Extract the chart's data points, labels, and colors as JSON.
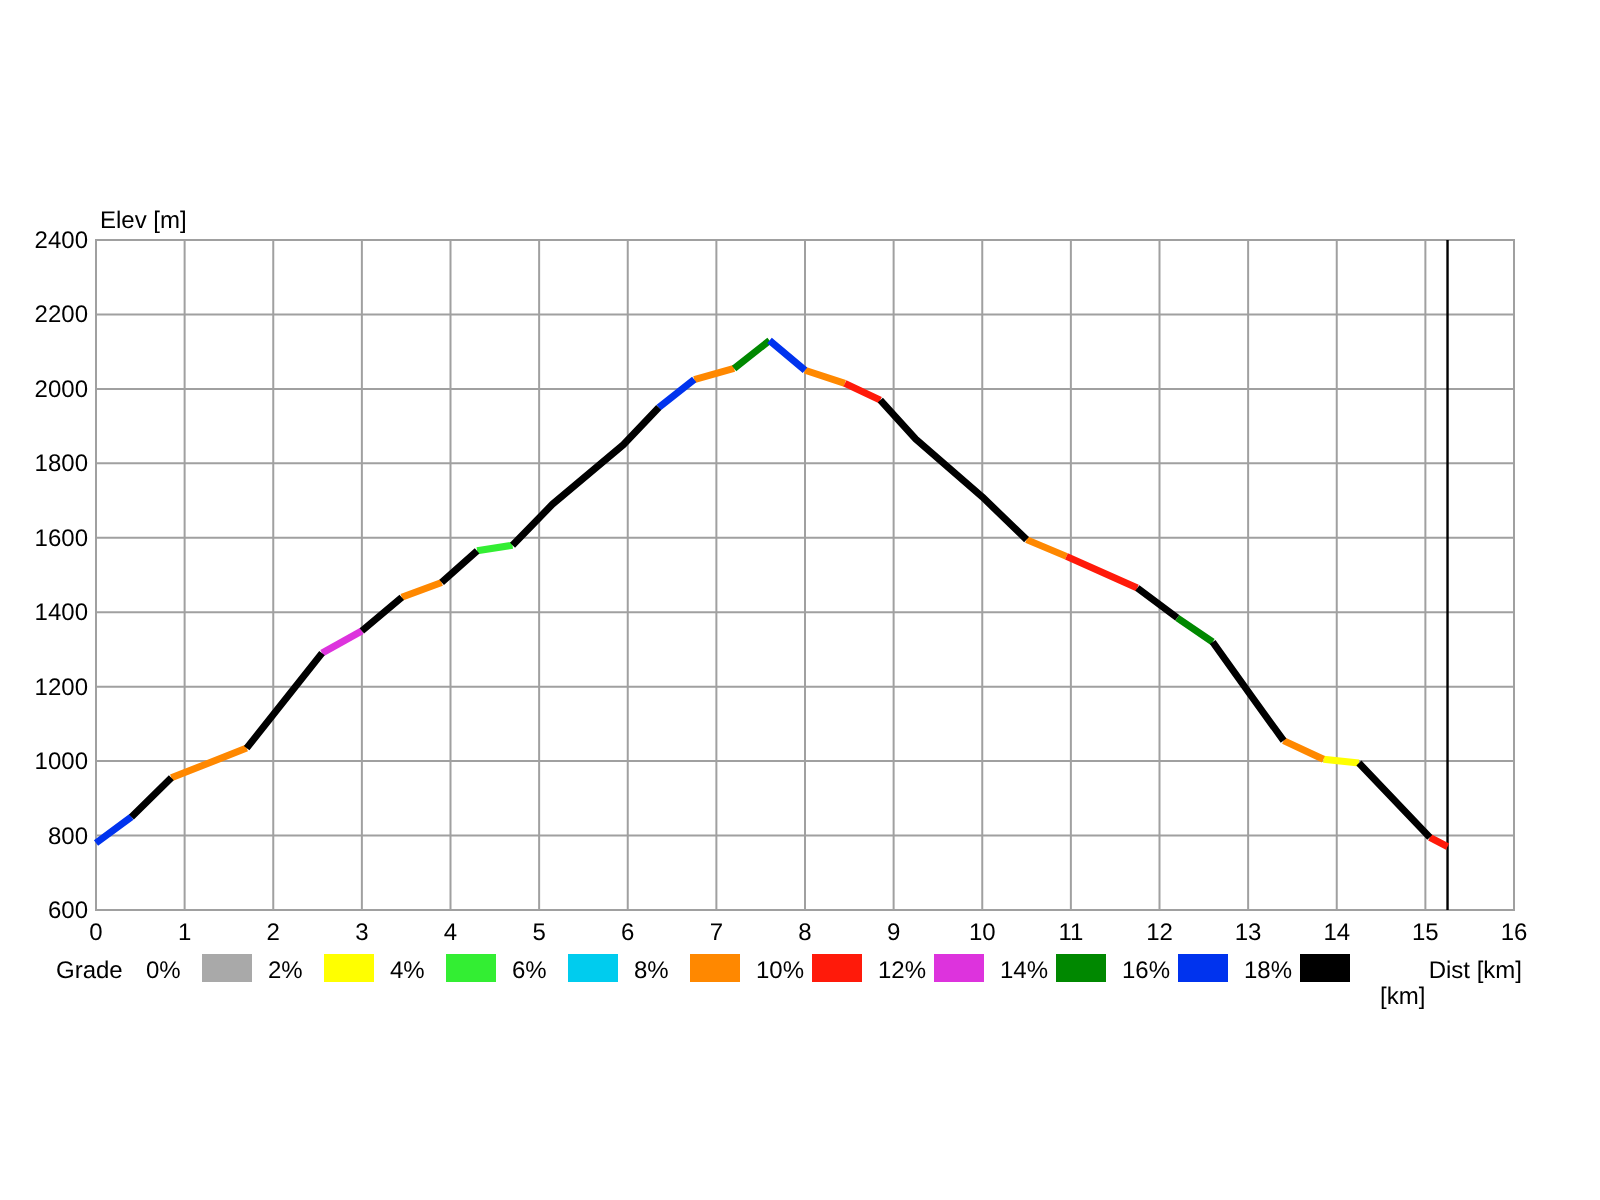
{
  "chart_data": {
    "type": "line",
    "ylabel": "Elev [m]",
    "xlabel": "Dist [km]",
    "legend_title": "Grade",
    "xlim": [
      0,
      16
    ],
    "xticks": [
      0,
      1,
      2,
      3,
      4,
      5,
      6,
      7,
      8,
      9,
      10,
      11,
      12,
      13,
      14,
      15,
      16
    ],
    "ylim": [
      600,
      2400
    ],
    "yticks": [
      600,
      800,
      1000,
      1200,
      1400,
      1600,
      1800,
      2000,
      2200,
      2400
    ],
    "grid": true,
    "legend": "bottom",
    "ref_lines": [
      {
        "axis": "x",
        "value": 15.25,
        "color": "#000000"
      }
    ],
    "annotations": [
      "[km]"
    ],
    "series": [
      {
        "name": "0%",
        "color": "#a9a9a9"
      },
      {
        "name": "2%",
        "color": "#ffff00",
        "x": [
          13.85,
          14.25
        ],
        "values": [
          1005,
          995
        ]
      },
      {
        "name": "4%",
        "color": "#33ee33",
        "x": [
          4.3,
          4.7
        ],
        "values": [
          1565,
          1580
        ]
      },
      {
        "name": "6%",
        "color": "#00ccee"
      },
      {
        "name": "8%",
        "color": "#ff8800",
        "x": [
          0.85,
          1.7,
          null,
          3.45,
          3.9,
          null,
          6.75,
          7.2,
          null,
          8.0,
          8.45,
          null,
          10.5,
          10.95,
          null,
          13.4,
          13.85
        ],
        "values": [
          955,
          1035,
          null,
          1440,
          1480,
          null,
          2025,
          2055,
          null,
          2050,
          2015,
          null,
          1595,
          1550,
          null,
          1055,
          1005
        ]
      },
      {
        "name": "10%",
        "color": "#ff1a0a",
        "x": [
          8.45,
          8.85,
          null,
          10.95,
          11.75,
          null,
          15.05,
          15.25
        ],
        "values": [
          2015,
          1970,
          null,
          1550,
          1465,
          null,
          795,
          770
        ]
      },
      {
        "name": "12%",
        "color": "#dd33dd",
        "x": [
          2.55,
          3.0
        ],
        "values": [
          1290,
          1350
        ]
      },
      {
        "name": "14%",
        "color": "#008800",
        "x": [
          7.2,
          7.6,
          null,
          12.2,
          12.6
        ],
        "values": [
          2055,
          2130,
          null,
          1385,
          1320
        ]
      },
      {
        "name": "16%",
        "color": "#0033ee",
        "x": [
          0,
          0.4,
          null,
          6.35,
          6.75,
          null,
          7.6,
          8.0
        ],
        "values": [
          780,
          850,
          null,
          1950,
          2025,
          null,
          2130,
          2050
        ]
      },
      {
        "name": "18%",
        "color": "#000000",
        "x": [
          0.4,
          0.85,
          null,
          1.7,
          2.55,
          null,
          3.0,
          3.45,
          null,
          3.9,
          4.3,
          null,
          4.7,
          5.15,
          5.95,
          6.35,
          null,
          8.85,
          9.25,
          10.0,
          10.5,
          null,
          11.75,
          12.2,
          null,
          12.6,
          13.05,
          13.4,
          null,
          14.25,
          15.05
        ],
        "values": [
          850,
          955,
          null,
          1035,
          1290,
          null,
          1350,
          1440,
          null,
          1480,
          1565,
          null,
          1580,
          1690,
          1850,
          1950,
          null,
          1970,
          1865,
          1710,
          1595,
          null,
          1465,
          1385,
          null,
          1320,
          1170,
          1055,
          null,
          995,
          795
        ]
      }
    ]
  }
}
